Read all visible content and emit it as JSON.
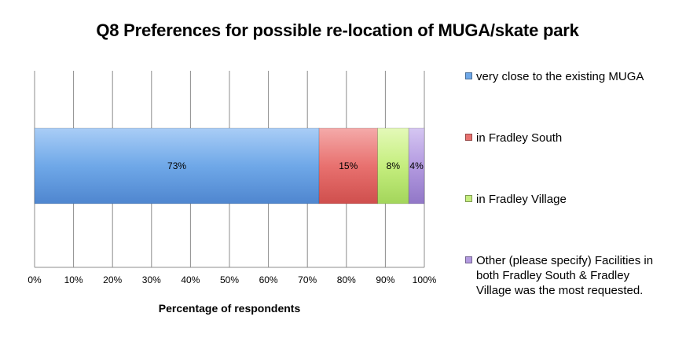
{
  "chart_data": {
    "type": "bar",
    "orientation": "horizontal",
    "stacked": true,
    "title": "Q8 Preferences for possible re-location of MUGA/skate park",
    "xlabel": "Percentage of respondents",
    "xlim": [
      0,
      100
    ],
    "x_ticks": [
      "0%",
      "10%",
      "20%",
      "30%",
      "40%",
      "50%",
      "60%",
      "70%",
      "80%",
      "90%",
      "100%"
    ],
    "grid": true,
    "legend_position": "right",
    "series": [
      {
        "name": "very close to the existing MUGA",
        "value": 73,
        "label": "73%",
        "color": "#6fa8e8"
      },
      {
        "name": "in Fradley South",
        "value": 15,
        "label": "15%",
        "color": "#e8716f"
      },
      {
        "name": "in Fradley Village",
        "value": 8,
        "label": "8%",
        "color": "#c5ee7e"
      },
      {
        "name": "Other (please specify) Facilities in both Fradley South & Fradley Village was the most requested.",
        "value": 4,
        "label": "4%",
        "color": "#b39ae0"
      }
    ]
  }
}
